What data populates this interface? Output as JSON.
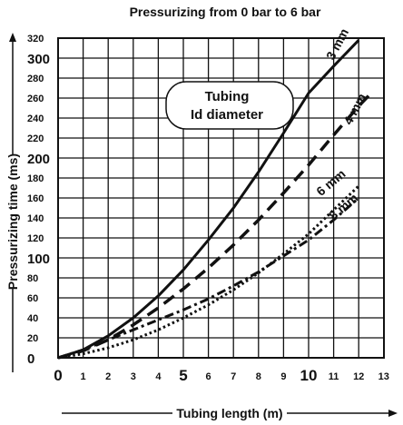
{
  "chart_data": {
    "type": "line",
    "title": "Pressurizing from 0 bar to 6 bar",
    "xlabel": "Tubing length (m)",
    "ylabel": "Pressurizing time (ms)",
    "xlim": [
      0,
      12
    ],
    "ylim": [
      0,
      320
    ],
    "x_ticks": [
      0,
      1,
      2,
      3,
      4,
      5,
      6,
      7,
      8,
      9,
      10,
      11,
      12,
      13
    ],
    "x_ticks_large": [
      0,
      5,
      10
    ],
    "y_ticks": [
      0,
      20,
      40,
      60,
      80,
      100,
      120,
      140,
      160,
      180,
      200,
      220,
      240,
      260,
      280,
      300,
      320
    ],
    "y_ticks_large": [
      0,
      100,
      200,
      300
    ],
    "grid": true,
    "annotation": {
      "lines": [
        "Tubing",
        "Id diameter"
      ]
    },
    "series": [
      {
        "name": "3 mm",
        "style": "solid",
        "x": [
          0,
          1,
          2,
          3,
          4,
          5,
          6,
          7,
          8,
          9,
          10,
          11,
          12
        ],
        "values": [
          0,
          8,
          22,
          40,
          62,
          88,
          118,
          150,
          186,
          225,
          265,
          292,
          318
        ]
      },
      {
        "name": "4 mm",
        "style": "dashed",
        "x": [
          0,
          1,
          2,
          3,
          4,
          5,
          6,
          7,
          8,
          9,
          10,
          11,
          12,
          12.5
        ],
        "values": [
          0,
          7,
          18,
          33,
          50,
          69,
          90,
          113,
          138,
          165,
          193,
          223,
          252,
          265
        ]
      },
      {
        "name": "6 mm",
        "style": "dotted",
        "x": [
          0,
          1,
          2,
          3,
          4,
          5,
          6,
          7,
          8,
          9,
          10,
          11,
          12
        ],
        "values": [
          0,
          4,
          10,
          18,
          28,
          40,
          53,
          68,
          85,
          104,
          124,
          148,
          172
        ]
      },
      {
        "name": "8 mm",
        "style": "dashdot",
        "x": [
          0,
          1,
          2,
          3,
          4,
          5,
          6,
          7,
          8,
          9,
          10,
          11,
          12
        ],
        "values": [
          0,
          8,
          18,
          28,
          38,
          48,
          59,
          72,
          86,
          102,
          118,
          138,
          160
        ]
      }
    ]
  }
}
